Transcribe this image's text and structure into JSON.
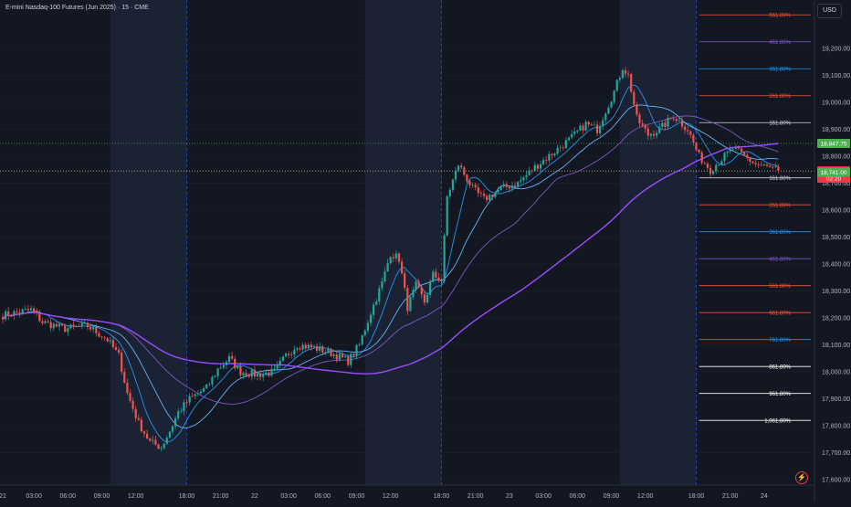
{
  "header": {
    "title": "E-mini Nasdaq-100 Futures (Jun 2025) · 15 · CME"
  },
  "axis": {
    "currency": "USD"
  },
  "chart_data": {
    "type": "candlestick",
    "instrument": "E-mini Nasdaq-100 Futures (Jun 2025)",
    "interval": "15",
    "exchange": "CME",
    "ylim": [
      17580,
      19380
    ],
    "y_ticks": [
      {
        "value": 19200,
        "label": "19,200.00"
      },
      {
        "value": 19100,
        "label": "19,100.00"
      },
      {
        "value": 19000,
        "label": "19,000.00"
      },
      {
        "value": 18900,
        "label": "18,900.00"
      },
      {
        "value": 18800,
        "label": "18,800.00"
      },
      {
        "value": 18700,
        "label": "18,700.00"
      },
      {
        "value": 18600,
        "label": "18,600.00"
      },
      {
        "value": 18500,
        "label": "18,500.00"
      },
      {
        "value": 18400,
        "label": "18,400.00"
      },
      {
        "value": 18300,
        "label": "18,300.00"
      },
      {
        "value": 18200,
        "label": "18,200.00"
      },
      {
        "value": 18100,
        "label": "18,100.00"
      },
      {
        "value": 18000,
        "label": "18,000.00"
      },
      {
        "value": 17900,
        "label": "17,900.00"
      },
      {
        "value": 17800,
        "label": "17,800.00"
      },
      {
        "value": 17700,
        "label": "17,700.00"
      },
      {
        "value": 17600,
        "label": "17,600.00"
      }
    ],
    "x_ticks": [
      {
        "index": 0,
        "label": "21"
      },
      {
        "index": 11,
        "label": "03:00"
      },
      {
        "index": 23,
        "label": "06:00"
      },
      {
        "index": 35,
        "label": "09:00"
      },
      {
        "index": 47,
        "label": "12:00"
      },
      {
        "index": 65,
        "label": "18:00"
      },
      {
        "index": 77,
        "label": "21:00"
      },
      {
        "index": 89,
        "label": "22"
      },
      {
        "index": 101,
        "label": "03:00"
      },
      {
        "index": 113,
        "label": "06:00"
      },
      {
        "index": 125,
        "label": "09:00"
      },
      {
        "index": 137,
        "label": "12:00"
      },
      {
        "index": 155,
        "label": "18:00"
      },
      {
        "index": 167,
        "label": "21:00"
      },
      {
        "index": 179,
        "label": "23"
      },
      {
        "index": 191,
        "label": "03:00"
      },
      {
        "index": 203,
        "label": "06:00"
      },
      {
        "index": 215,
        "label": "09:00"
      },
      {
        "index": 227,
        "label": "12:00"
      },
      {
        "index": 245,
        "label": "18:00"
      },
      {
        "index": 257,
        "label": "21:00"
      },
      {
        "index": 269,
        "label": "24"
      }
    ],
    "session_dividers": [
      65,
      155,
      245
    ],
    "shaded_sessions": [
      [
        38,
        65
      ],
      [
        128,
        155
      ],
      [
        218,
        245
      ]
    ],
    "keypoints": [
      [
        0,
        18210
      ],
      [
        10,
        18230
      ],
      [
        14,
        18185
      ],
      [
        22,
        18160
      ],
      [
        30,
        18170
      ],
      [
        37,
        18120
      ],
      [
        41,
        18060
      ],
      [
        44,
        17920
      ],
      [
        48,
        17810
      ],
      [
        52,
        17740
      ],
      [
        56,
        17720
      ],
      [
        59,
        17780
      ],
      [
        62,
        17850
      ],
      [
        66,
        17900
      ],
      [
        72,
        17940
      ],
      [
        76,
        18010
      ],
      [
        80,
        18050
      ],
      [
        84,
        18000
      ],
      [
        90,
        17990
      ],
      [
        96,
        18000
      ],
      [
        100,
        18060
      ],
      [
        104,
        18100
      ],
      [
        110,
        18090
      ],
      [
        116,
        18070
      ],
      [
        122,
        18040
      ],
      [
        126,
        18100
      ],
      [
        130,
        18220
      ],
      [
        134,
        18330
      ],
      [
        137,
        18440
      ],
      [
        140,
        18420
      ],
      [
        143,
        18240
      ],
      [
        146,
        18320
      ],
      [
        149,
        18260
      ],
      [
        152,
        18360
      ],
      [
        155,
        18340
      ],
      [
        157,
        18650
      ],
      [
        161,
        18770
      ],
      [
        166,
        18680
      ],
      [
        170,
        18640
      ],
      [
        176,
        18680
      ],
      [
        182,
        18700
      ],
      [
        188,
        18760
      ],
      [
        194,
        18810
      ],
      [
        200,
        18860
      ],
      [
        206,
        18920
      ],
      [
        210,
        18900
      ],
      [
        216,
        19040
      ],
      [
        219,
        19130
      ],
      [
        221,
        19100
      ],
      [
        224,
        18940
      ],
      [
        228,
        18880
      ],
      [
        232,
        18900
      ],
      [
        237,
        18950
      ],
      [
        242,
        18900
      ],
      [
        246,
        18800
      ],
      [
        250,
        18750
      ],
      [
        254,
        18790
      ],
      [
        258,
        18830
      ],
      [
        262,
        18800
      ],
      [
        266,
        18770
      ],
      [
        270,
        18760
      ],
      [
        274,
        18747
      ]
    ],
    "last_bar_index": 274,
    "price_labels": [
      {
        "value": 18847.75,
        "label": "18,847.75",
        "color": "#4caf50"
      },
      {
        "value": 18745.5,
        "label": "18,745.50",
        "sub": "02:20",
        "color": "#f23645"
      },
      {
        "value": 18741.0,
        "label": "18,741.00",
        "color": "#4caf50"
      }
    ],
    "horizontal_lines": [
      {
        "value": 18847.75,
        "color": "#4caf50",
        "style": "dotted"
      },
      {
        "value": 18745.5,
        "color": "#c9b47a",
        "style": "dotted"
      }
    ],
    "fibonacci_upper": {
      "start_index": 246,
      "levels": [
        {
          "value": 19325,
          "label": "561.80%",
          "color": "#f0573f"
        },
        {
          "value": 19225,
          "label": "461.80%",
          "color": "#7e57c2"
        },
        {
          "value": 19125,
          "label": "361.80%",
          "color": "#2196f3"
        },
        {
          "value": 19025,
          "label": "261.80%",
          "color": "#f0573f"
        },
        {
          "value": 18925,
          "label": "161.80%",
          "color": "#d1d4dc"
        }
      ]
    },
    "fibonacci_lower": {
      "start_index": 246,
      "levels": [
        {
          "value": 18720,
          "label": "161.80%",
          "color": "#d1d4dc"
        },
        {
          "value": 18620,
          "label": "261.80%",
          "color": "#f0573f"
        },
        {
          "value": 18520,
          "label": "361.80%",
          "color": "#2196f3"
        },
        {
          "value": 18420,
          "label": "461.80%",
          "color": "#7e57c2"
        },
        {
          "value": 18320,
          "label": "561.80%",
          "color": "#f0573f"
        },
        {
          "value": 18220,
          "label": "661.80%",
          "color": "#f0573f"
        },
        {
          "value": 18120,
          "label": "761.80%",
          "color": "#2196f3"
        },
        {
          "value": 18020,
          "label": "861.80%",
          "color": "#ffffff"
        },
        {
          "value": 17920,
          "label": "961.80%",
          "color": "#ffffff"
        },
        {
          "value": 17820,
          "label": "1,061.80%",
          "color": "#ffffff"
        }
      ]
    },
    "moving_averages": [
      {
        "period": 9,
        "color": "#2196f3"
      },
      {
        "period": 20,
        "color": "#64b5f6"
      },
      {
        "period": 40,
        "color": "#7e57c2"
      },
      {
        "period": 100,
        "color": "#9c4dff"
      }
    ],
    "colors": {
      "up": "#26a69a",
      "down": "#ef5350",
      "background": "#131722",
      "shade": "#1b2233",
      "grid": "#1e222d"
    }
  }
}
